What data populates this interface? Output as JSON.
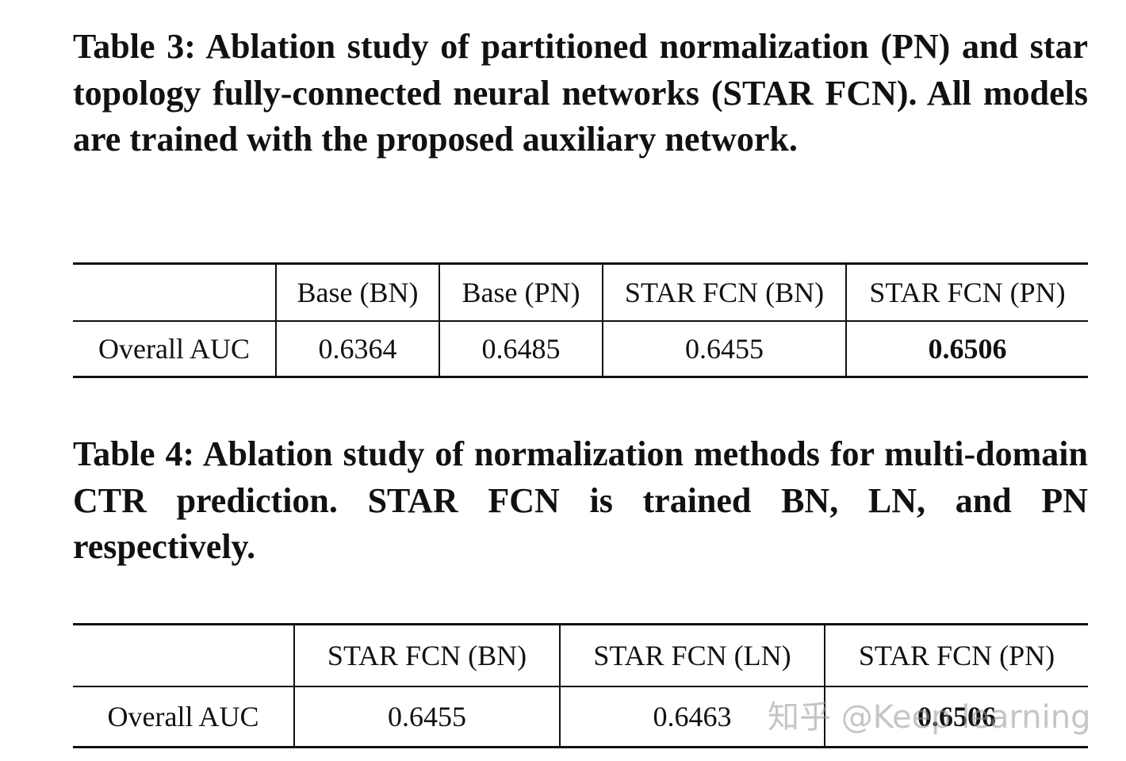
{
  "table3": {
    "caption": "Table 3: Ablation study of partitioned normalization (PN) and star topology fully-connected neural networks (STAR FCN). All models are trained with the proposed auxiliary network.",
    "headers": [
      "",
      "Base (BN)",
      "Base (PN)",
      "STAR FCN (BN)",
      "STAR FCN (PN)"
    ],
    "row": {
      "label": "Overall AUC",
      "values": [
        "0.6364",
        "0.6485",
        "0.6455",
        "0.6506"
      ]
    }
  },
  "table4": {
    "caption": "Table 4: Ablation study of normalization methods for multi-domain CTR prediction. STAR FCN is trained BN, LN, and PN respectively.",
    "headers": [
      "",
      "STAR FCN (BN)",
      "STAR FCN (LN)",
      "STAR FCN (PN)"
    ],
    "row": {
      "label": "Overall AUC",
      "values": [
        "0.6455",
        "0.6463",
        "0.6506"
      ]
    }
  },
  "watermark": "知乎 @Keep learning"
}
